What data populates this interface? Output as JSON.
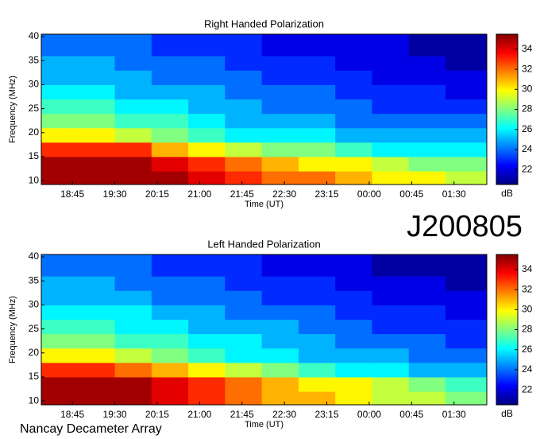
{
  "annotations": [
    "J200805",
    "Nancay Decameter Array"
  ],
  "chart_data": [
    {
      "type": "heatmap",
      "title": "Right Handed Polarization",
      "xlabel": "Time (UT)",
      "ylabel": "Frequency (MHz)",
      "colorbar_label": "dB",
      "xlim": [
        18.2,
        26.08
      ],
      "ylim": [
        9.2,
        40.5
      ],
      "clim": [
        20.5,
        35.5
      ],
      "colormap": "jet",
      "xticks": [
        {
          "value": 18.75,
          "label": "18:45"
        },
        {
          "value": 19.5,
          "label": "19:30"
        },
        {
          "value": 20.25,
          "label": "20:15"
        },
        {
          "value": 21,
          "label": "21:00"
        },
        {
          "value": 21.75,
          "label": "21:45"
        },
        {
          "value": 22.5,
          "label": "22:30"
        },
        {
          "value": 23.25,
          "label": "23:15"
        },
        {
          "value": 24,
          "label": "00:00"
        },
        {
          "value": 24.75,
          "label": "00:45"
        },
        {
          "value": 25.5,
          "label": "01:30"
        }
      ],
      "yticks": [
        10,
        15,
        20,
        25,
        30,
        35,
        40
      ],
      "cticks": [
        22,
        24,
        26,
        28,
        30,
        32,
        34
      ],
      "x_edges": [
        18.2,
        18.85,
        19.5,
        20.15,
        20.8,
        21.45,
        22.1,
        22.75,
        23.4,
        24.05,
        24.7,
        25.35,
        26.08
      ],
      "y_edges": [
        9.2,
        12,
        15,
        18,
        21,
        24,
        27,
        30,
        33,
        36,
        40.5
      ],
      "z": [
        [
          35,
          35,
          35,
          35,
          34,
          33,
          32,
          32,
          31,
          30,
          30,
          29
        ],
        [
          35,
          35,
          35,
          34,
          33,
          32,
          31,
          30,
          30,
          29,
          28,
          28
        ],
        [
          33,
          33,
          33,
          31,
          30,
          29,
          28,
          28,
          27,
          26,
          26,
          26
        ],
        [
          30,
          30,
          29,
          28,
          27,
          26,
          26,
          26,
          25,
          25,
          25,
          25
        ],
        [
          28,
          28,
          27,
          27,
          26,
          25,
          25,
          25,
          24,
          24,
          24,
          24
        ],
        [
          27,
          27,
          26,
          26,
          25,
          25,
          24,
          24,
          24,
          23,
          23,
          23
        ],
        [
          26,
          26,
          25,
          25,
          25,
          24,
          24,
          24,
          23,
          23,
          23,
          22
        ],
        [
          25,
          25,
          25,
          24,
          24,
          24,
          23,
          23,
          23,
          22,
          22,
          22
        ],
        [
          25,
          25,
          24,
          24,
          24,
          23,
          23,
          23,
          22,
          22,
          22,
          21
        ],
        [
          24,
          24,
          24,
          23,
          23,
          23,
          22,
          22,
          22,
          22,
          21,
          21
        ]
      ]
    },
    {
      "type": "heatmap",
      "title": "Left Handed Polarization",
      "xlabel": "Time (UT)",
      "ylabel": "Frequency (MHz)",
      "colorbar_label": "dB",
      "xlim": [
        18.2,
        26.08
      ],
      "ylim": [
        9.2,
        40.5
      ],
      "clim": [
        20.5,
        35.5
      ],
      "colormap": "jet",
      "xticks": [
        {
          "value": 18.75,
          "label": "18:45"
        },
        {
          "value": 19.5,
          "label": "19:30"
        },
        {
          "value": 20.25,
          "label": "20:15"
        },
        {
          "value": 21,
          "label": "21:00"
        },
        {
          "value": 21.75,
          "label": "21:45"
        },
        {
          "value": 22.5,
          "label": "22:30"
        },
        {
          "value": 23.25,
          "label": "23:15"
        },
        {
          "value": 24,
          "label": "00:00"
        },
        {
          "value": 24.75,
          "label": "00:45"
        },
        {
          "value": 25.5,
          "label": "01:30"
        }
      ],
      "yticks": [
        10,
        15,
        20,
        25,
        30,
        35,
        40
      ],
      "cticks": [
        22,
        24,
        26,
        28,
        30,
        32,
        34
      ],
      "x_edges": [
        18.2,
        18.85,
        19.5,
        20.15,
        20.8,
        21.45,
        22.1,
        22.75,
        23.4,
        24.05,
        24.7,
        25.35,
        26.08
      ],
      "y_edges": [
        9.2,
        12,
        15,
        18,
        21,
        24,
        27,
        30,
        33,
        36,
        40.5
      ],
      "z": [
        [
          35,
          35,
          35,
          34,
          33,
          32,
          31,
          31,
          30,
          29,
          29,
          28
        ],
        [
          35,
          35,
          35,
          34,
          33,
          32,
          31,
          30,
          30,
          29,
          28,
          27
        ],
        [
          33,
          33,
          32,
          31,
          30,
          29,
          28,
          27,
          26,
          26,
          25,
          25
        ],
        [
          30,
          30,
          29,
          28,
          27,
          26,
          26,
          25,
          25,
          25,
          24,
          24
        ],
        [
          28,
          28,
          27,
          27,
          26,
          26,
          25,
          25,
          24,
          24,
          24,
          23
        ],
        [
          27,
          27,
          26,
          26,
          25,
          25,
          25,
          24,
          24,
          23,
          23,
          23
        ],
        [
          26,
          26,
          26,
          25,
          25,
          24,
          24,
          24,
          23,
          23,
          23,
          22
        ],
        [
          25,
          25,
          25,
          24,
          24,
          24,
          23,
          23,
          23,
          22,
          22,
          22
        ],
        [
          25,
          25,
          24,
          24,
          24,
          23,
          23,
          23,
          22,
          22,
          22,
          21
        ],
        [
          24,
          24,
          24,
          23,
          23,
          23,
          22,
          22,
          22,
          21,
          21,
          21
        ]
      ]
    }
  ]
}
